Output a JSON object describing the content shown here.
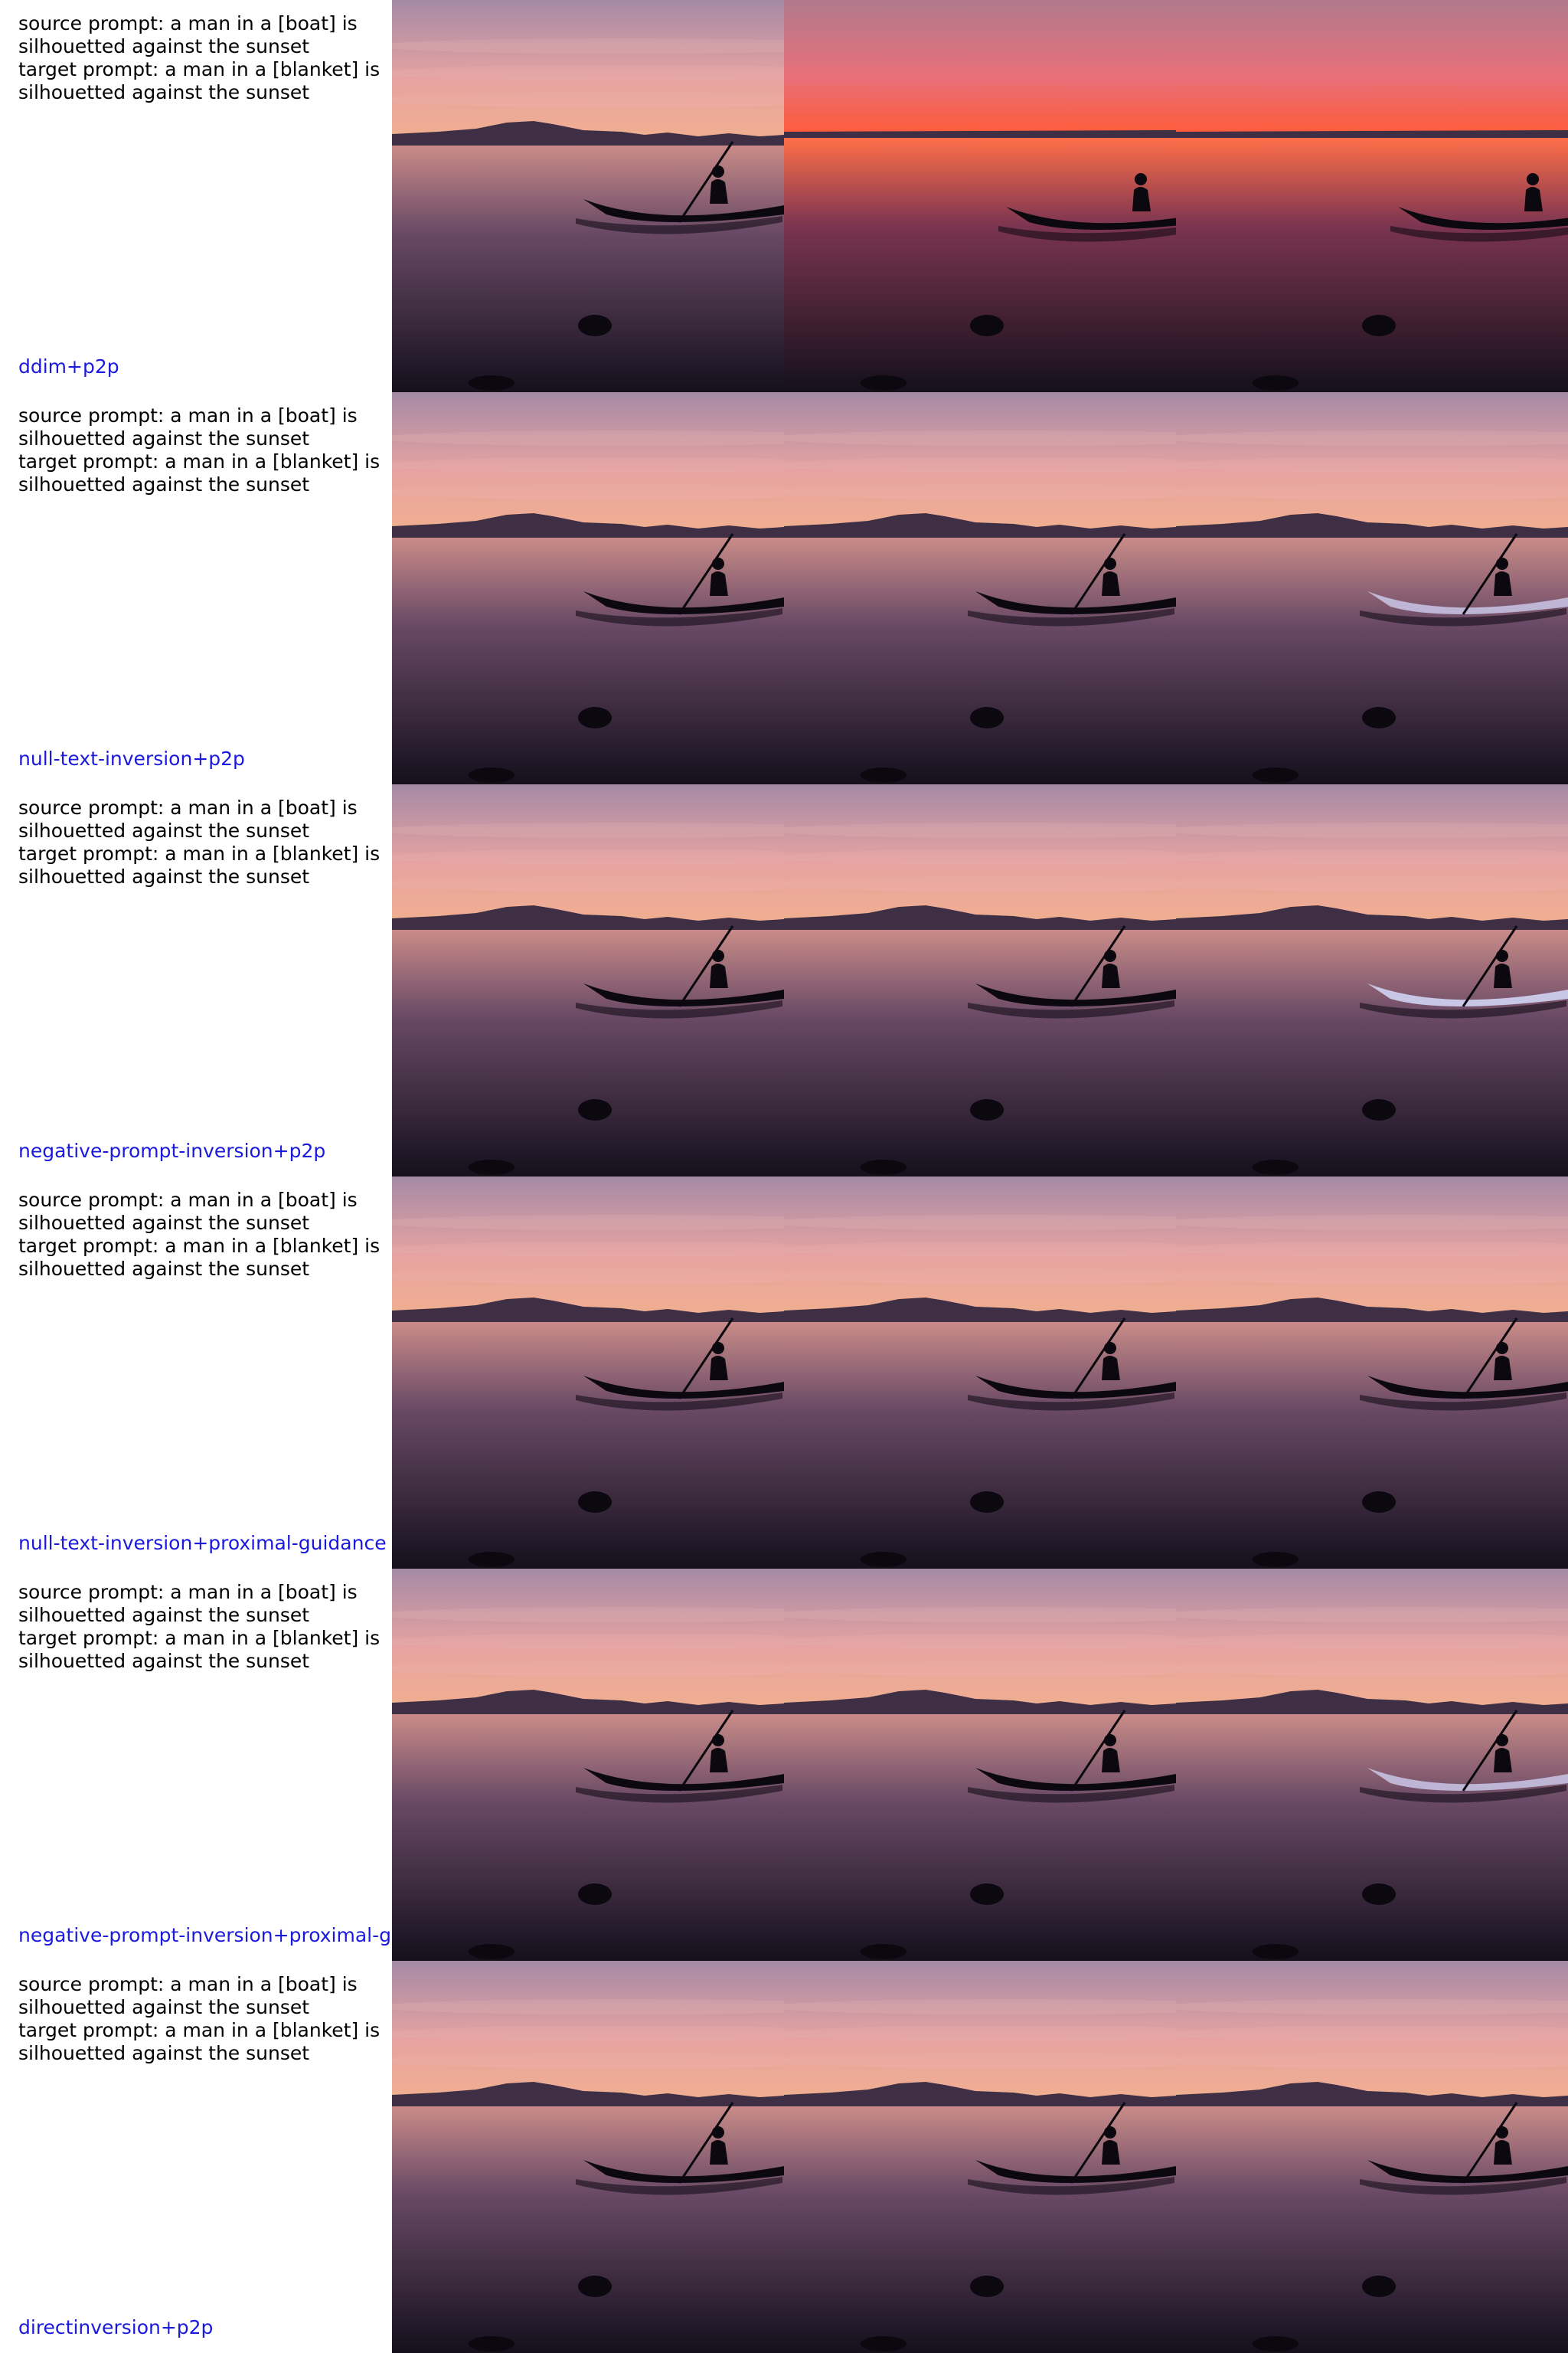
{
  "rows": [
    {
      "source_prompt": "source prompt: a man in a [boat] is",
      "source_prompt_2": "silhouetted against the sunset",
      "target_prompt": "target prompt: a man in a [blanket] is",
      "target_prompt_2": "silhouetted against the sunset",
      "method": "ddim+p2p"
    },
    {
      "source_prompt": "source prompt: a man in a [boat] is",
      "source_prompt_2": "silhouetted against the sunset",
      "target_prompt": "target prompt: a man in a [blanket] is",
      "target_prompt_2": "silhouetted against the sunset",
      "method": "null-text-inversion+p2p"
    },
    {
      "source_prompt": "source prompt: a man in a [boat] is",
      "source_prompt_2": "silhouetted against the sunset",
      "target_prompt": "target prompt: a man in a [blanket] is",
      "target_prompt_2": "silhouetted against the sunset",
      "method": "negative-prompt-inversion+p2p"
    },
    {
      "source_prompt": "source prompt: a man in a [boat] is",
      "source_prompt_2": "silhouetted against the sunset",
      "target_prompt": "target prompt: a man in a [blanket] is",
      "target_prompt_2": "silhouetted against the sunset",
      "method": "null-text-inversion+proximal-guidance"
    },
    {
      "source_prompt": "source prompt: a man in a [boat] is",
      "source_prompt_2": "silhouetted against the sunset",
      "target_prompt": "target prompt: a man in a [blanket] is",
      "target_prompt_2": "silhouetted against the sunset",
      "method": "negative-prompt-inversion+proximal-g"
    },
    {
      "source_prompt": "source prompt: a man in a [boat] is",
      "source_prompt_2": "silhouetted against the sunset",
      "target_prompt": "target prompt: a man in a [blanket] is",
      "target_prompt_2": "silhouetted against the sunset",
      "method": "directinversion+p2p"
    }
  ],
  "colors": {
    "method_label": "#1a1adc",
    "prompt_text": "#000000",
    "sky_top": "#a58aa6",
    "sky_mid": "#e7a3a0",
    "horizon_glow": "#f1b08f",
    "water_dark": "#14101c",
    "silhouette": "#0b0810",
    "ddim_sky_top": "#b07a8c",
    "ddim_glow": "#ff5a36",
    "blanket_fill": "#c9c7e6"
  }
}
